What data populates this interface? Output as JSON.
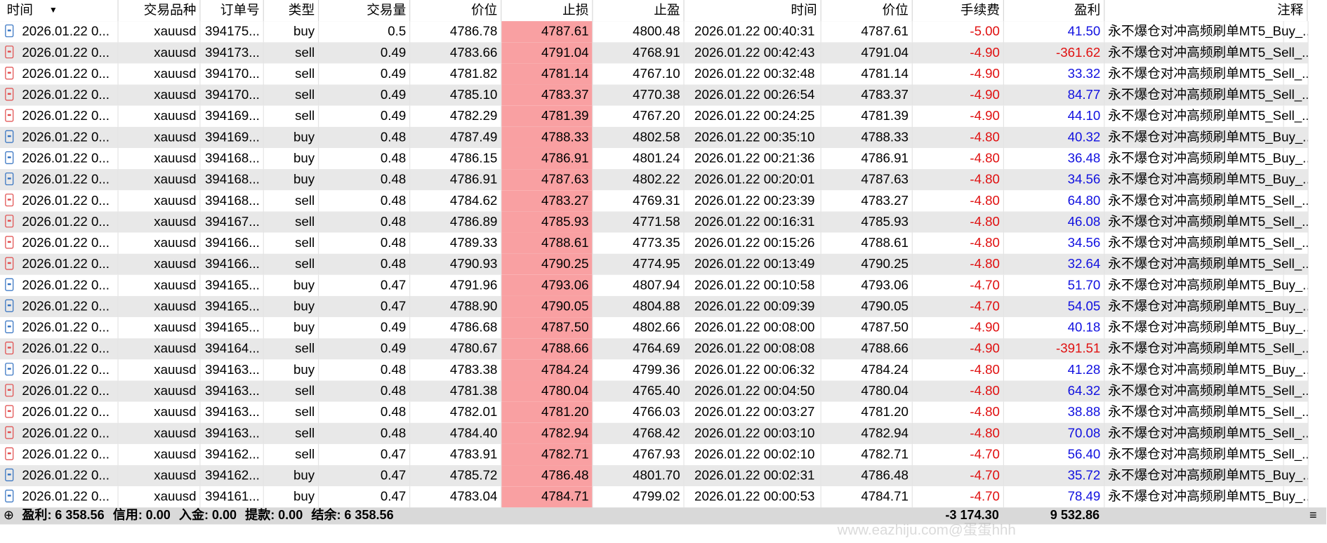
{
  "header": {
    "columns": [
      "时间",
      "交易品种",
      "订单号",
      "类型",
      "交易量",
      "价位",
      "止损",
      "止盈",
      "时间",
      "价位",
      "手续费",
      "盈利",
      "注释"
    ]
  },
  "table": {
    "rows": [
      [
        "2026.01.22 0...",
        "xauusd",
        "394175...",
        "buy",
        "0.5",
        "4786.78",
        "4787.61",
        "4800.48",
        "2026.01.22 00:40:31",
        "4787.61",
        "-5.00",
        "41.50",
        "永不爆仓对冲高频刷单MT5_Buy_..."
      ],
      [
        "2026.01.22 0...",
        "xauusd",
        "394173...",
        "sell",
        "0.49",
        "4783.66",
        "4791.04",
        "4768.91",
        "2026.01.22 00:42:43",
        "4791.04",
        "-4.90",
        "-361.62",
        "永不爆仓对冲高频刷单MT5_Sell_..."
      ],
      [
        "2026.01.22 0...",
        "xauusd",
        "394170...",
        "sell",
        "0.49",
        "4781.82",
        "4781.14",
        "4767.10",
        "2026.01.22 00:32:48",
        "4781.14",
        "-4.90",
        "33.32",
        "永不爆仓对冲高频刷单MT5_Sell_..."
      ],
      [
        "2026.01.22 0...",
        "xauusd",
        "394170...",
        "sell",
        "0.49",
        "4785.10",
        "4783.37",
        "4770.38",
        "2026.01.22 00:26:54",
        "4783.37",
        "-4.90",
        "84.77",
        "永不爆仓对冲高频刷单MT5_Sell_..."
      ],
      [
        "2026.01.22 0...",
        "xauusd",
        "394169...",
        "sell",
        "0.49",
        "4782.29",
        "4781.39",
        "4767.20",
        "2026.01.22 00:24:25",
        "4781.39",
        "-4.90",
        "44.10",
        "永不爆仓对冲高频刷单MT5_Sell_..."
      ],
      [
        "2026.01.22 0...",
        "xauusd",
        "394169...",
        "buy",
        "0.48",
        "4787.49",
        "4788.33",
        "4802.58",
        "2026.01.22 00:35:10",
        "4788.33",
        "-4.80",
        "40.32",
        "永不爆仓对冲高频刷单MT5_Buy_..."
      ],
      [
        "2026.01.22 0...",
        "xauusd",
        "394168...",
        "buy",
        "0.48",
        "4786.15",
        "4786.91",
        "4801.24",
        "2026.01.22 00:21:36",
        "4786.91",
        "-4.80",
        "36.48",
        "永不爆仓对冲高频刷单MT5_Buy_..."
      ],
      [
        "2026.01.22 0...",
        "xauusd",
        "394168...",
        "buy",
        "0.48",
        "4786.91",
        "4787.63",
        "4802.22",
        "2026.01.22 00:20:01",
        "4787.63",
        "-4.80",
        "34.56",
        "永不爆仓对冲高频刷单MT5_Buy_..."
      ],
      [
        "2026.01.22 0...",
        "xauusd",
        "394168...",
        "sell",
        "0.48",
        "4784.62",
        "4783.27",
        "4769.31",
        "2026.01.22 00:23:39",
        "4783.27",
        "-4.80",
        "64.80",
        "永不爆仓对冲高频刷单MT5_Sell_..."
      ],
      [
        "2026.01.22 0...",
        "xauusd",
        "394167...",
        "sell",
        "0.48",
        "4786.89",
        "4785.93",
        "4771.58",
        "2026.01.22 00:16:31",
        "4785.93",
        "-4.80",
        "46.08",
        "永不爆仓对冲高频刷单MT5_Sell_..."
      ],
      [
        "2026.01.22 0...",
        "xauusd",
        "394166...",
        "sell",
        "0.48",
        "4789.33",
        "4788.61",
        "4773.35",
        "2026.01.22 00:15:26",
        "4788.61",
        "-4.80",
        "34.56",
        "永不爆仓对冲高频刷单MT5_Sell_..."
      ],
      [
        "2026.01.22 0...",
        "xauusd",
        "394166...",
        "sell",
        "0.48",
        "4790.93",
        "4790.25",
        "4774.95",
        "2026.01.22 00:13:49",
        "4790.25",
        "-4.80",
        "32.64",
        "永不爆仓对冲高频刷单MT5_Sell_..."
      ],
      [
        "2026.01.22 0...",
        "xauusd",
        "394165...",
        "buy",
        "0.47",
        "4791.96",
        "4793.06",
        "4807.94",
        "2026.01.22 00:10:58",
        "4793.06",
        "-4.70",
        "51.70",
        "永不爆仓对冲高频刷单MT5_Buy_..."
      ],
      [
        "2026.01.22 0...",
        "xauusd",
        "394165...",
        "buy",
        "0.47",
        "4788.90",
        "4790.05",
        "4804.88",
        "2026.01.22 00:09:39",
        "4790.05",
        "-4.70",
        "54.05",
        "永不爆仓对冲高频刷单MT5_Buy_..."
      ],
      [
        "2026.01.22 0...",
        "xauusd",
        "394165...",
        "buy",
        "0.49",
        "4786.68",
        "4787.50",
        "4802.66",
        "2026.01.22 00:08:00",
        "4787.50",
        "-4.90",
        "40.18",
        "永不爆仓对冲高频刷单MT5_Buy_..."
      ],
      [
        "2026.01.22 0...",
        "xauusd",
        "394164...",
        "sell",
        "0.49",
        "4780.67",
        "4788.66",
        "4764.69",
        "2026.01.22 00:08:08",
        "4788.66",
        "-4.90",
        "-391.51",
        "永不爆仓对冲高频刷单MT5_Sell_..."
      ],
      [
        "2026.01.22 0...",
        "xauusd",
        "394163...",
        "buy",
        "0.48",
        "4783.38",
        "4784.24",
        "4799.36",
        "2026.01.22 00:06:32",
        "4784.24",
        "-4.80",
        "41.28",
        "永不爆仓对冲高频刷单MT5_Buy_..."
      ],
      [
        "2026.01.22 0...",
        "xauusd",
        "394163...",
        "sell",
        "0.48",
        "4781.38",
        "4780.04",
        "4765.40",
        "2026.01.22 00:04:50",
        "4780.04",
        "-4.80",
        "64.32",
        "永不爆仓对冲高频刷单MT5_Sell_..."
      ],
      [
        "2026.01.22 0...",
        "xauusd",
        "394163...",
        "sell",
        "0.48",
        "4782.01",
        "4781.20",
        "4766.03",
        "2026.01.22 00:03:27",
        "4781.20",
        "-4.80",
        "38.88",
        "永不爆仓对冲高频刷单MT5_Sell_..."
      ],
      [
        "2026.01.22 0...",
        "xauusd",
        "394163...",
        "sell",
        "0.48",
        "4784.40",
        "4782.94",
        "4768.42",
        "2026.01.22 00:03:10",
        "4782.94",
        "-4.80",
        "70.08",
        "永不爆仓对冲高频刷单MT5_Sell_..."
      ],
      [
        "2026.01.22 0...",
        "xauusd",
        "394162...",
        "sell",
        "0.47",
        "4783.91",
        "4782.71",
        "4767.93",
        "2026.01.22 00:02:10",
        "4782.71",
        "-4.70",
        "56.40",
        "永不爆仓对冲高频刷单MT5_Sell_..."
      ],
      [
        "2026.01.22 0...",
        "xauusd",
        "394162...",
        "buy",
        "0.47",
        "4785.72",
        "4786.48",
        "4801.70",
        "2026.01.22 00:02:31",
        "4786.48",
        "-4.70",
        "35.72",
        "永不爆仓对冲高频刷单MT5_Buy_..."
      ],
      [
        "2026.01.22 0...",
        "xauusd",
        "394161...",
        "buy",
        "0.47",
        "4783.04",
        "4784.71",
        "4799.02",
        "2026.01.22 00:00:53",
        "4784.71",
        "-4.70",
        "78.49",
        "永不爆仓对冲高频刷单MT5_Buy_..."
      ]
    ]
  },
  "footer": {
    "summary": [
      {
        "label": "盈利:",
        "value": "6 358.56"
      },
      {
        "label": "信用:",
        "value": "0.00"
      },
      {
        "label": "入金:",
        "value": "0.00"
      },
      {
        "label": "提款:",
        "value": "0.00"
      },
      {
        "label": "结余:",
        "value": "6 358.56"
      }
    ],
    "total_commission": "-3 174.30",
    "total_profit": "9 532.86"
  },
  "watermark": "www.eazhiju.com@蛋蛋hhh"
}
